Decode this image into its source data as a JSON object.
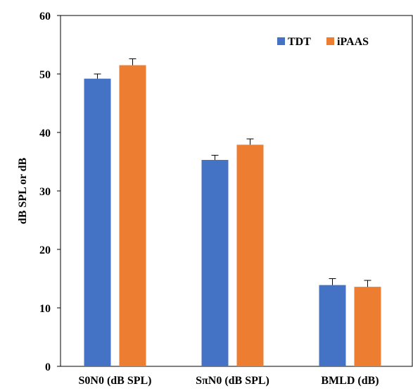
{
  "chart_data": {
    "type": "bar",
    "title": "",
    "xlabel": "",
    "ylabel": "dB SPL or dB",
    "ylim": [
      0,
      60
    ],
    "yticks": [
      0,
      10,
      20,
      30,
      40,
      50,
      60
    ],
    "grid": false,
    "legend_position": "top-right",
    "categories": [
      "S0N0 (dB SPL)",
      "SπN0 (dB SPL)",
      "BMLD (dB)"
    ],
    "series": [
      {
        "name": "TDT",
        "color": "#4472C4",
        "values": [
          49.2,
          35.3,
          13.9
        ],
        "errors": [
          0.8,
          0.8,
          1.1
        ]
      },
      {
        "name": "iPAAS",
        "color": "#ED7D31",
        "values": [
          51.5,
          37.9,
          13.6
        ],
        "errors": [
          1.1,
          1.0,
          1.1
        ]
      }
    ]
  }
}
